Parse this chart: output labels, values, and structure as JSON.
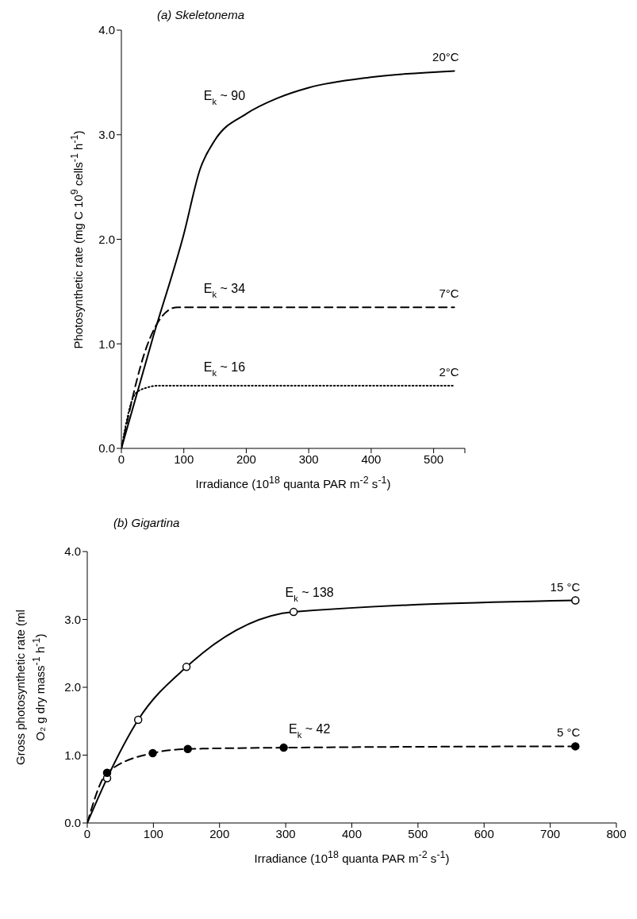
{
  "chart_data": [
    {
      "type": "line",
      "title": "(a) Skeletonema",
      "xlabel": "Irradiance (10$^{18}$ quanta PAR m$^{-2}$ s$^{-1}$)",
      "ylabel": "Photosynthetic rate (mg C 10$^{9}$ cells$^{-1}$ h$^{-1}$)",
      "series": [
        {
          "name": "20°C",
          "color": "#000000",
          "line_style": "solid",
          "x": [
            0,
            50,
            100,
            126,
            150,
            200,
            250,
            300,
            400,
            533
          ],
          "values": [
            0,
            1.05,
            2.05,
            2.67,
            2.95,
            3.2,
            3.35,
            3.45,
            3.55,
            3.61
          ]
        },
        {
          "name": "7°C",
          "color": "#000000",
          "line_style": "dashed",
          "x": [
            0,
            41,
            60,
            75,
            90,
            533
          ],
          "values": [
            0,
            0.98,
            1.22,
            1.32,
            1.35,
            1.35
          ]
        },
        {
          "name": "2°C",
          "color": "#000000",
          "line_style": "dotted",
          "x": [
            0,
            22,
            40,
            60,
            533
          ],
          "values": [
            0,
            0.52,
            0.58,
            0.6,
            0.6
          ]
        }
      ],
      "annotations": [
        "E$_{k}$ ~ 90",
        "E$_{k}$ ~ 34",
        "E$_{k}$ ~ 16"
      ],
      "xlim": [
        0,
        550
      ],
      "xticks": [
        0,
        100,
        200,
        300,
        400,
        500,
        {
          "value": 550,
          "label": null
        }
      ],
      "ylim": [
        0,
        4
      ],
      "yticks": [
        {
          "value": 0,
          "label": "0.0"
        },
        {
          "value": 1,
          "label": "1.0"
        },
        {
          "value": 2,
          "label": "2.0"
        },
        {
          "value": 3,
          "label": "3.0"
        },
        {
          "value": 4,
          "label": "4.0"
        }
      ],
      "marker": "none",
      "grid": false,
      "legend": false
    },
    {
      "type": "line",
      "title": "(b) Gigartina",
      "xlabel": "Irradiance (10$^{18}$ quanta PAR m$^{-2}$ s$^{-1}$)",
      "ylabel": "Gross photosynthetic rate (ml O₂ g dry mass$^{-1}$ h$^{-1}$)",
      "series": [
        {
          "name": "15 °C",
          "color": "#000000",
          "line_style": "solid",
          "x": [
            0,
            30,
            77,
            150,
            312,
            738
          ],
          "values": [
            0,
            0.66,
            1.52,
            2.3,
            3.11,
            3.28
          ]
        },
        {
          "name": "5 °C",
          "color": "#000000",
          "line_style": "dashed",
          "x": [
            0,
            30,
            99,
            152,
            297,
            738
          ],
          "values": [
            0,
            0.74,
            1.03,
            1.09,
            1.11,
            1.13
          ]
        }
      ],
      "annotations": [
        "E$_{k}$ ~ 138",
        "E$_{k}$ ~ 42"
      ],
      "xlim": [
        0,
        800
      ],
      "xticks": [
        0,
        100,
        200,
        300,
        400,
        500,
        600,
        700,
        800
      ],
      "ylim": [
        0,
        4
      ],
      "yticks": [
        {
          "value": 0,
          "label": "0.0"
        },
        {
          "value": 1,
          "label": "1.0"
        },
        {
          "value": 2,
          "label": "2.0"
        },
        {
          "value": 3,
          "label": "3.0"
        },
        {
          "value": 4,
          "label": "4.0"
        }
      ],
      "marker": "circle",
      "grid": false,
      "legend": false
    }
  ]
}
